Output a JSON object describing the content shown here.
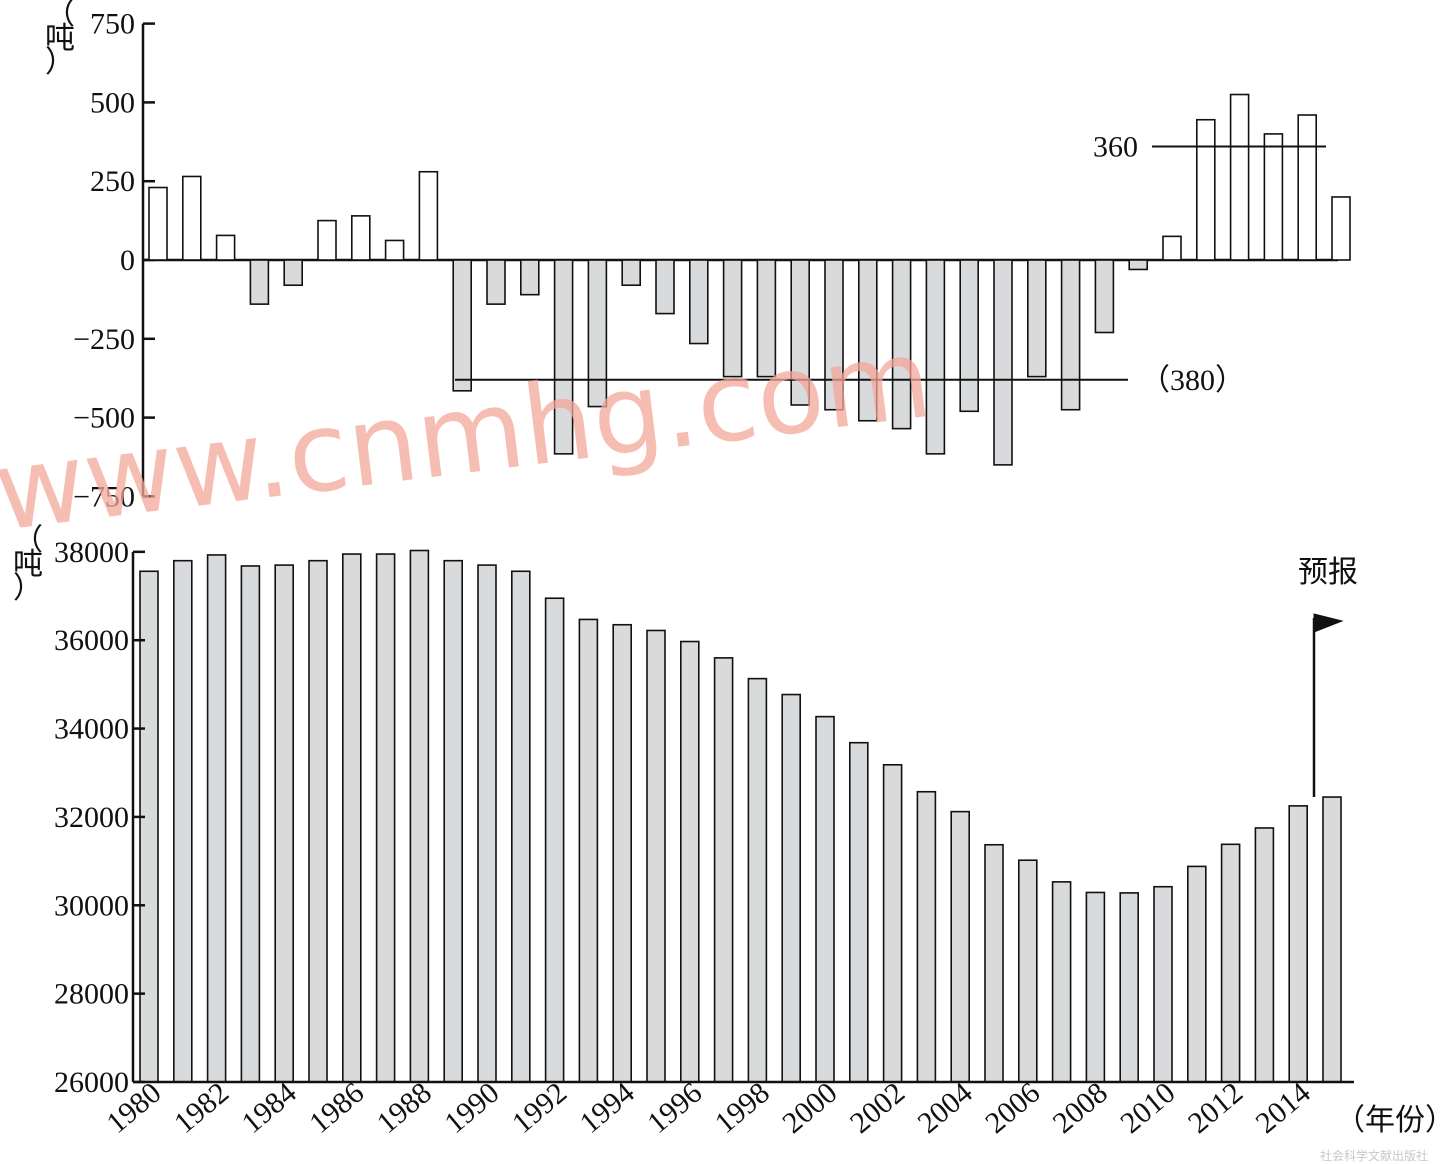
{
  "chart_data": [
    {
      "type": "bar",
      "y_unit": "（吨）",
      "ylim": [
        -750,
        750
      ],
      "yticks": [
        "750",
        "500",
        "250",
        "0",
        "−250",
        "−500",
        "−750"
      ],
      "x": [
        1980,
        1981,
        1982,
        1983,
        1984,
        1985,
        1986,
        1987,
        1988,
        1989,
        1990,
        1991,
        1992,
        1993,
        1994,
        1995,
        1996,
        1997,
        1998,
        1999,
        2000,
        2001,
        2002,
        2003,
        2004,
        2005,
        2006,
        2007,
        2008,
        2009,
        2010,
        2011,
        2012,
        2013,
        2014,
        2015
      ],
      "values": [
        230,
        265,
        78,
        -140,
        -80,
        125,
        140,
        62,
        280,
        -415,
        -140,
        -110,
        -615,
        -465,
        -80,
        -170,
        -265,
        -370,
        -370,
        -460,
        -475,
        -510,
        -535,
        -615,
        -480,
        -650,
        -370,
        -475,
        -230,
        -30,
        75,
        445,
        525,
        400,
        460,
        200
      ],
      "reference_lines": [
        {
          "value": 360,
          "label": "360"
        },
        {
          "value": -380,
          "label": "（380）"
        }
      ]
    },
    {
      "type": "bar",
      "y_unit": "（吨）",
      "ylim": [
        26000,
        38000
      ],
      "yticks": [
        "38000",
        "36000",
        "34000",
        "32000",
        "30000",
        "28000",
        "26000"
      ],
      "x_label": "（年份）",
      "x_ticks": [
        "1980",
        "1982",
        "1984",
        "1986",
        "1988",
        "1990",
        "1992",
        "1994",
        "1996",
        "1998",
        "2000",
        "2002",
        "2004",
        "2006",
        "2008",
        "2010",
        "2012",
        "2014"
      ],
      "x": [
        1980,
        1981,
        1982,
        1983,
        1984,
        1985,
        1986,
        1987,
        1988,
        1989,
        1990,
        1991,
        1992,
        1993,
        1994,
        1995,
        1996,
        1997,
        1998,
        1999,
        2000,
        2001,
        2002,
        2003,
        2004,
        2005,
        2006,
        2007,
        2008,
        2009,
        2010,
        2011,
        2012,
        2013,
        2014,
        2015
      ],
      "values": [
        37560,
        37800,
        37930,
        37680,
        37700,
        37800,
        37950,
        37950,
        38030,
        37800,
        37700,
        37560,
        36950,
        36470,
        36350,
        36220,
        35970,
        35600,
        35130,
        34770,
        34270,
        33680,
        33180,
        32570,
        32120,
        31370,
        31020,
        30530,
        30290,
        30280,
        30420,
        30880,
        31380,
        31750,
        32250,
        32450
      ],
      "annotation": "预报"
    }
  ],
  "watermark": "www.cnmhg.com",
  "credit": "社会科学文献出版社",
  "colors": {
    "negative_bar": "#d9dadb",
    "positive_bar": "#ffffff",
    "outline": "#111111",
    "watermark": "#f4a79a"
  }
}
